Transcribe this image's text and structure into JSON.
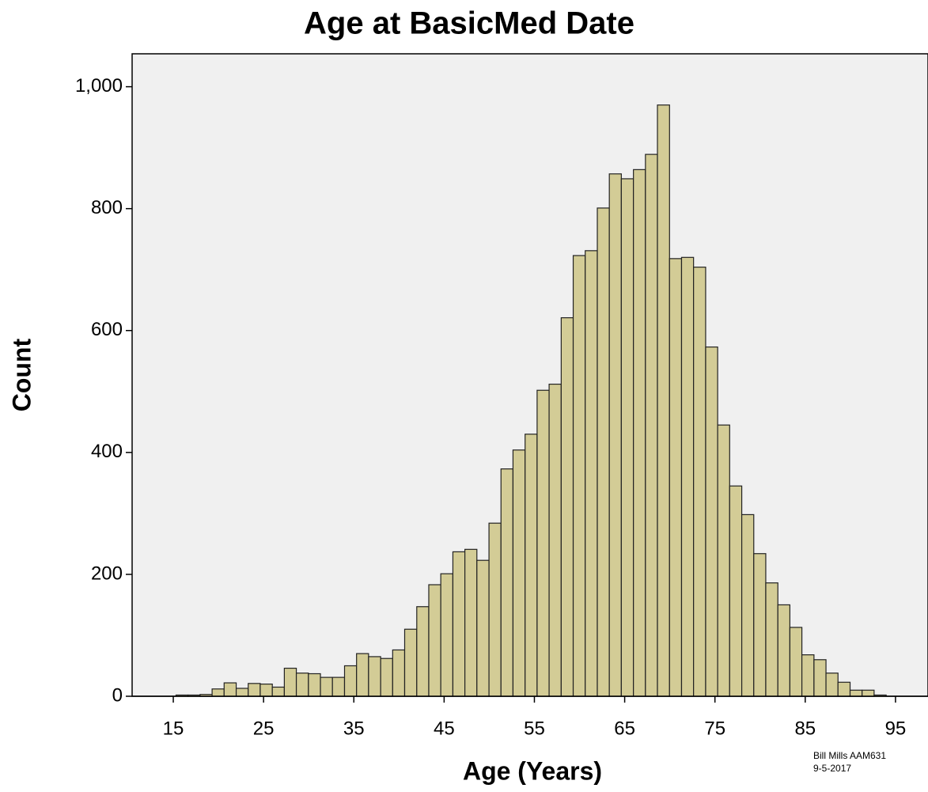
{
  "chart_data": {
    "type": "histogram",
    "title": "Age at BasicMed Date",
    "xlabel": "Age (Years)",
    "ylabel": "Count",
    "annotation": [
      "Bill Mills AAM631",
      "9-5-2017"
    ],
    "bins": [
      15.3,
      16.63,
      17.97,
      19.3,
      20.63,
      21.97,
      23.3,
      24.63,
      25.97,
      27.3,
      28.63,
      29.97,
      31.3,
      32.63,
      33.97,
      35.3,
      36.63,
      37.97,
      39.3,
      40.63,
      41.97,
      43.3,
      44.63,
      45.97,
      47.3,
      48.63,
      49.97,
      51.3,
      52.63,
      53.97,
      55.3,
      56.63,
      57.97,
      59.3,
      60.63,
      61.97,
      63.3,
      64.63,
      65.97,
      67.3,
      68.63,
      69.97,
      71.3,
      72.63,
      73.97,
      75.3,
      76.63,
      77.97,
      79.3,
      80.63,
      81.97,
      83.3,
      84.63,
      85.97,
      87.3,
      88.63,
      89.97,
      91.3,
      92.63,
      93.97
    ],
    "counts": [
      2,
      2,
      3,
      12,
      22,
      13,
      21,
      20,
      15,
      46,
      38,
      37,
      31,
      31,
      50,
      70,
      65,
      62,
      76,
      110,
      147,
      183,
      201,
      237,
      241,
      223,
      284,
      373,
      404,
      430,
      502,
      512,
      621,
      723,
      731,
      801,
      857,
      849,
      864,
      889,
      970,
      718,
      720,
      704,
      573,
      445,
      345,
      298,
      234,
      186,
      150,
      113,
      68,
      60,
      38,
      23,
      10,
      10,
      2
    ],
    "color": "#d3cc96",
    "edgecolor": "#222222",
    "background": "#f0f0f0",
    "xlim": [
      10.44,
      98.6
    ],
    "xticks": [
      15,
      25,
      35,
      45,
      55,
      65,
      75,
      85,
      95
    ],
    "ylim": [
      0,
      1054
    ],
    "yticks": [
      0,
      200,
      400,
      600,
      800,
      {
        "value": 1000,
        "label": "1,000"
      }
    ]
  }
}
